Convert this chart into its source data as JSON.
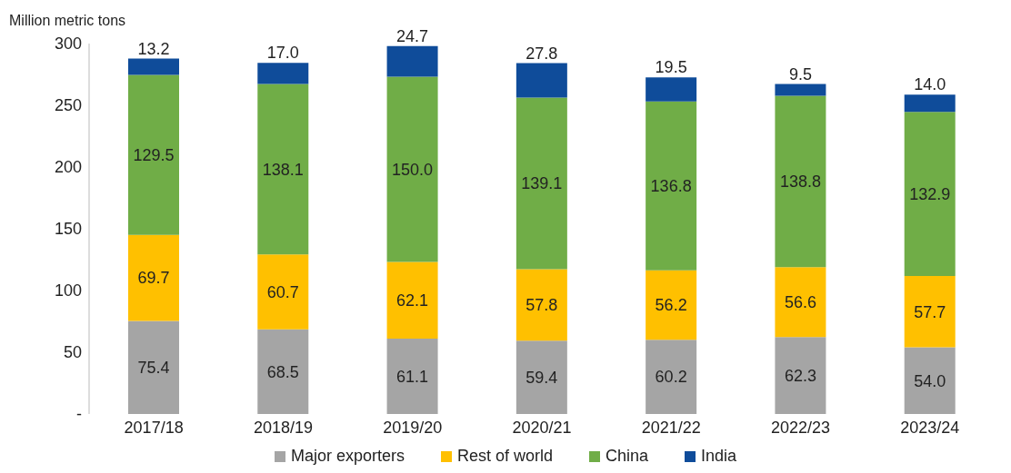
{
  "chart_data": {
    "type": "bar",
    "ylabel": "Million metric tons",
    "categories": [
      "2017/18",
      "2018/19",
      "2019/20",
      "2020/21",
      "2021/22",
      "2022/23",
      "2023/24"
    ],
    "series": [
      {
        "name": "Major exporters",
        "color": "#a5a5a5",
        "values": [
          75.4,
          68.5,
          61.1,
          59.4,
          60.2,
          62.3,
          54
        ],
        "value_labels": [
          "75.4",
          "68.5",
          "61.1",
          "59.4",
          "60.2",
          "62.3",
          "54.0"
        ]
      },
      {
        "name": "Rest of world",
        "color": "#ffc000",
        "values": [
          69.7,
          60.7,
          62.1,
          57.8,
          56.2,
          56.6,
          57.7
        ],
        "value_labels": [
          "69.7",
          "60.7",
          "62.1",
          "57.8",
          "56.2",
          "56.6",
          "57.7"
        ]
      },
      {
        "name": "China",
        "color": "#70ad47",
        "values": [
          129.5,
          138.1,
          150,
          139.1,
          136.8,
          138.8,
          132.9
        ],
        "value_labels": [
          "129.5",
          "138.1",
          "150.0",
          "139.1",
          "136.8",
          "138.8",
          "132.9"
        ]
      },
      {
        "name": "India",
        "color": "#0f4c9a",
        "values": [
          13.2,
          17,
          24.7,
          27.8,
          19.5,
          9.5,
          14
        ],
        "value_labels": [
          "13.2",
          "17.0",
          "24.7",
          "27.8",
          "19.5",
          "9.5",
          "14.0"
        ]
      }
    ],
    "stacked": true,
    "ylim": [
      0,
      300
    ],
    "yticks": [
      {
        "value": 0,
        "label": "-"
      },
      50,
      100,
      150,
      200,
      250,
      300
    ],
    "grid": false,
    "legend": "bottom"
  }
}
